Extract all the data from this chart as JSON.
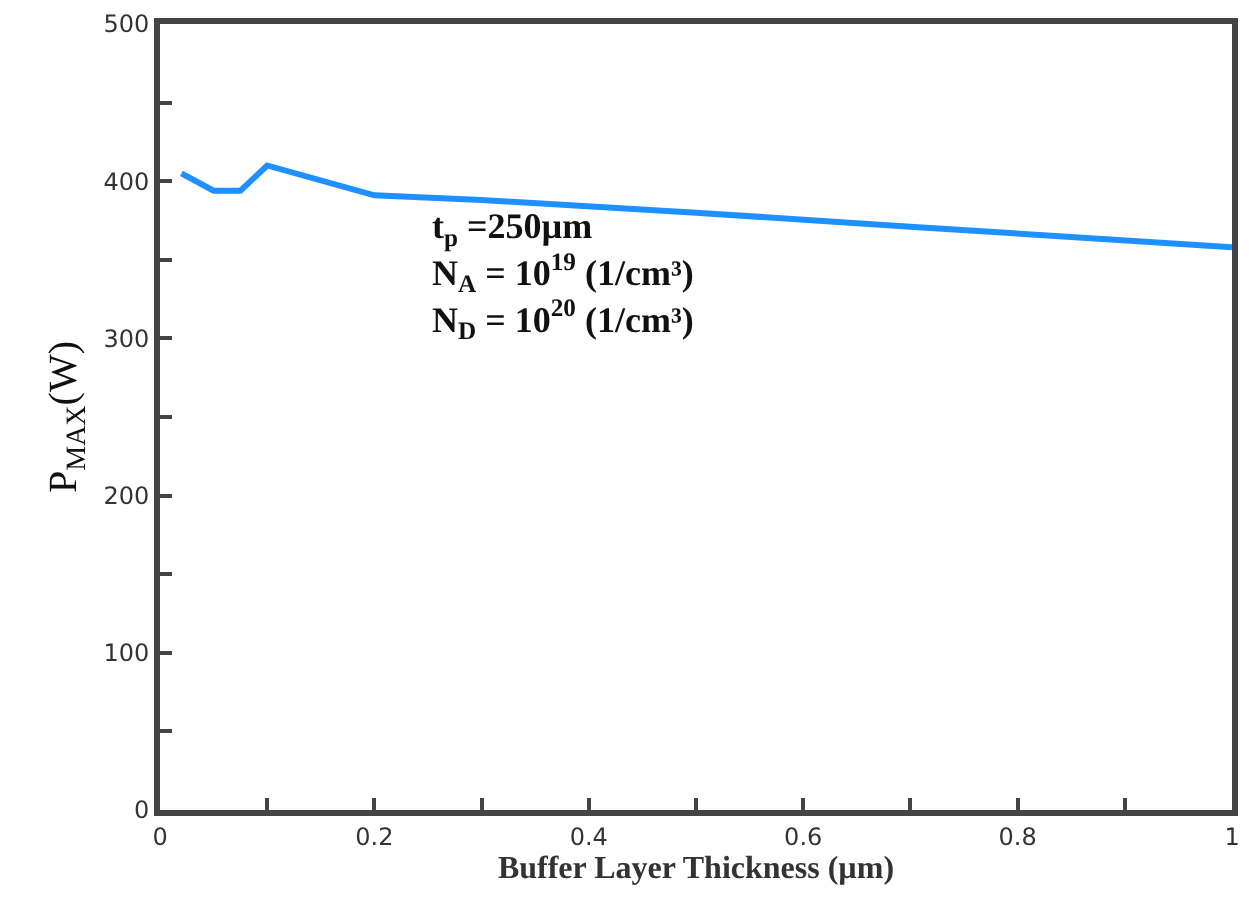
{
  "chart_data": {
    "type": "line",
    "xlabel": "Buffer Layer Thickness (µm)",
    "ylabel": "P$_{MAX}$(W)",
    "x": [
      0.02,
      0.05,
      0.075,
      0.1,
      0.2,
      0.3,
      0.5,
      0.7,
      1.0
    ],
    "series": [
      {
        "color": "#1e90ff",
        "values": [
          405,
          394,
          394,
          410,
          391,
          388,
          380,
          371,
          358
        ]
      }
    ],
    "xlim": [
      0,
      1
    ],
    "xticks": [
      0,
      {
        "value": 0.1,
        "label": null
      },
      0.2,
      {
        "value": 0.3,
        "label": null
      },
      0.4,
      {
        "value": 0.5,
        "label": null
      },
      0.6,
      {
        "value": 0.7,
        "label": null
      },
      0.8,
      {
        "value": 0.9,
        "label": null
      },
      1
    ],
    "ylim": [
      0,
      500
    ],
    "yticks": [
      0,
      {
        "value": 50,
        "label": null
      },
      100,
      {
        "value": 150,
        "label": null
      },
      200,
      {
        "value": 250,
        "label": null
      },
      300,
      {
        "value": 350,
        "label": null
      },
      400,
      {
        "value": 450,
        "label": null
      },
      500
    ],
    "annotations": [
      "t$_{p}$ =250µm\nN$_{A}$ = 10$^{19}$ (1/cm³)\nN$_{D}$ = 10$^{20}$ (1/cm³)"
    ],
    "legend": false,
    "marker": "none",
    "line_style": "solid"
  }
}
